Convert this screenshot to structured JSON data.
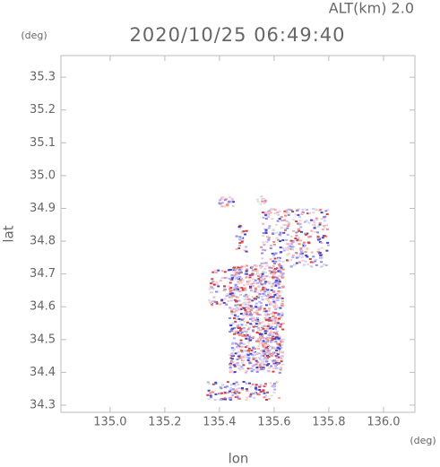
{
  "chart_data": {
    "type": "map",
    "title": "2020/10/25 06:49:40",
    "subtitle": "ALT(km) 2.0",
    "x_label": "lon",
    "y_label": "lat",
    "x_unit": "(deg)",
    "y_unit": "(deg)",
    "xlim": [
      134.82,
      136.115
    ],
    "ylim": [
      34.278,
      35.366
    ],
    "xticks": [
      {
        "value": 135.0,
        "label": "135.0"
      },
      135.2,
      135.4,
      135.6,
      135.8,
      {
        "value": 136.0,
        "label": "136.0"
      }
    ],
    "yticks": [
      34.3,
      34.4,
      34.5,
      34.6,
      34.7,
      34.8,
      34.9,
      {
        "value": 35.0,
        "label": "35.0"
      },
      35.1,
      35.2,
      35.3
    ]
  }
}
